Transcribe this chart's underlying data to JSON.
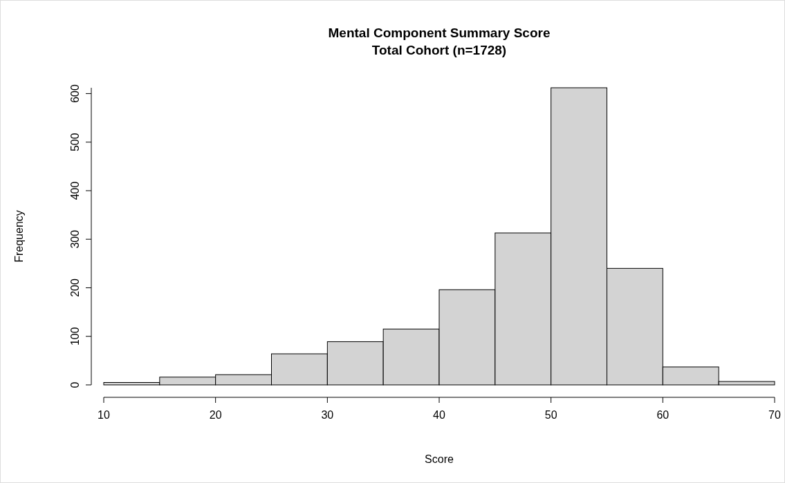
{
  "chart_data": {
    "type": "histogram",
    "title": "Mental Component Summary Score\nTotal Cohort (n=1728)",
    "xlabel": "Score",
    "ylabel": "Frequency",
    "bins": [
      10,
      15,
      20,
      25,
      30,
      35,
      40,
      45,
      50,
      55,
      60,
      65,
      70
    ],
    "values": [
      5,
      16,
      21,
      64,
      89,
      115,
      196,
      313,
      612,
      240,
      37,
      7
    ],
    "color": "#d3d3d3",
    "xlim": [
      10,
      70
    ],
    "xticks": [
      10,
      20,
      30,
      40,
      50,
      60,
      70
    ],
    "ylim": [
      0,
      612
    ],
    "yticks": [
      0,
      100,
      200,
      300,
      400,
      500,
      600
    ],
    "grid": false
  }
}
